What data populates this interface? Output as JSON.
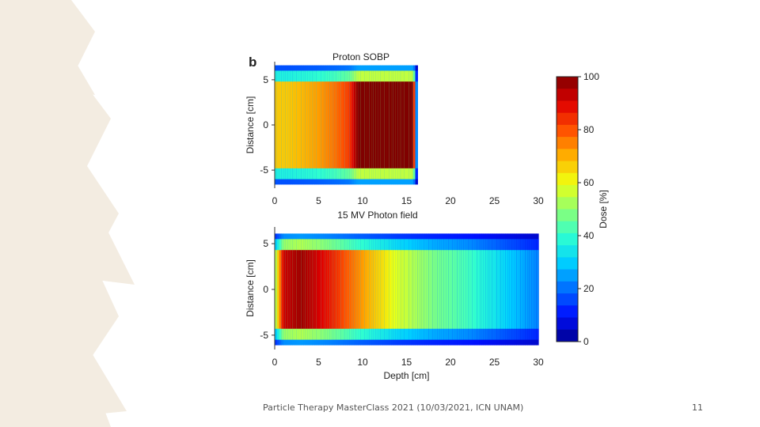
{
  "slide": {
    "footer": "Particle Therapy MasterClass 2021 (10/03/2021, ICN UNAM)",
    "number": "11"
  },
  "colors": {
    "decoration": "#f3ece1",
    "colormap": [
      "#00008f",
      "#0010ff",
      "#0070ff",
      "#00d0ff",
      "#30ffcf",
      "#90ff70",
      "#f0ff10",
      "#ffb000",
      "#ff5000",
      "#e00000",
      "#800000"
    ]
  },
  "chart_data": [
    {
      "type": "heatmap",
      "panel_label": "b",
      "title": "Proton SOBP",
      "xlabel": "",
      "ylabel": "Distance [cm]",
      "xlim": [
        0,
        30
      ],
      "ylim": [
        -7,
        7
      ],
      "xticks": [
        "0",
        "5",
        "10",
        "15",
        "20",
        "25",
        "30"
      ],
      "yticks": [
        "5",
        "0",
        "-5"
      ],
      "field_width_cm": 12,
      "depth_dose": [
        [
          0,
          67
        ],
        [
          1.5,
          67
        ],
        [
          3,
          69
        ],
        [
          5,
          72
        ],
        [
          7,
          77
        ],
        [
          8.5,
          83
        ],
        [
          9.5,
          100
        ],
        [
          15.8,
          100
        ],
        [
          16.2,
          5
        ]
      ]
    },
    {
      "type": "heatmap",
      "title": "15 MV Photon field",
      "xlabel": "Depth [cm]",
      "ylabel": "Distance [cm]",
      "xlim": [
        0,
        30
      ],
      "ylim": [
        -7,
        7
      ],
      "xticks": [
        "0",
        "5",
        "10",
        "15",
        "20",
        "25",
        "30"
      ],
      "yticks": [
        "5",
        "0",
        "-5"
      ],
      "field_width_cm": 11,
      "depth_dose": [
        [
          0,
          50
        ],
        [
          1,
          92
        ],
        [
          3,
          97
        ],
        [
          6,
          88
        ],
        [
          10,
          72
        ],
        [
          14,
          58
        ],
        [
          18,
          48
        ],
        [
          22,
          42
        ],
        [
          26,
          32
        ],
        [
          30,
          22
        ]
      ]
    },
    {
      "type": "colorbar",
      "label": "Dose [%]",
      "range": [
        0,
        100
      ],
      "ticks": [
        "100",
        "80",
        "60",
        "40",
        "20",
        "0"
      ]
    }
  ]
}
